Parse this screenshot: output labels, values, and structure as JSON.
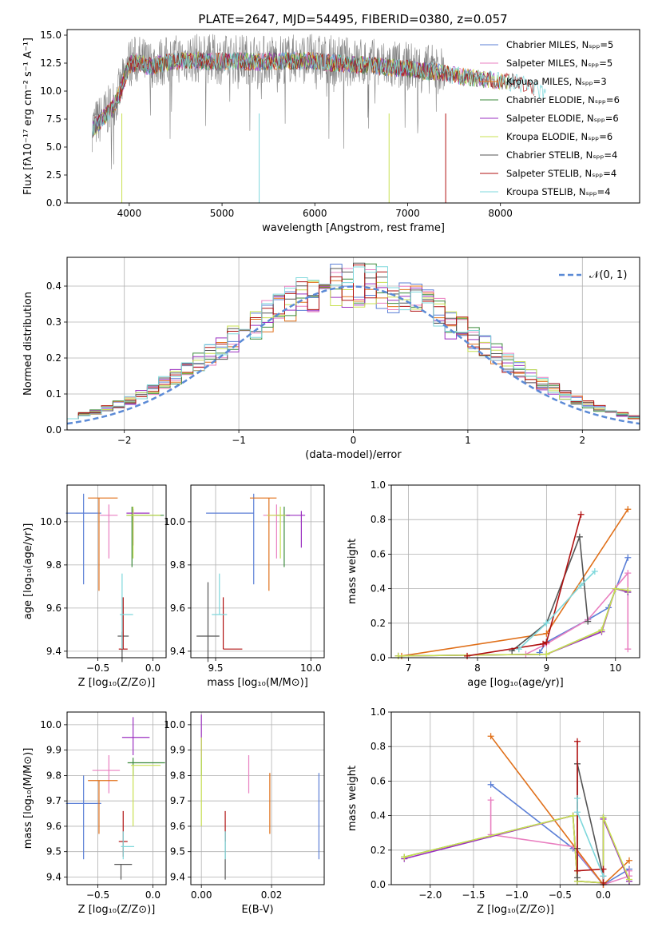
{
  "title": "PLATE=2647, MJD=54495, FIBERID=0380, z=0.057",
  "colors": {
    "chabrier_miles": "#5b7fd6",
    "salpeter_miles": "#e97fc0",
    "kroupa_miles": "#e0701a",
    "chabrier_elodie": "#3a8a3a",
    "salpeter_elodie": "#9b30c0",
    "kroupa_elodie": "#c8e050",
    "chabrier_stelib": "#555555",
    "salpeter_stelib": "#b01010",
    "kroupa_stelib": "#7fd8dc",
    "data": "#808080",
    "grid": "#b0b0b0"
  },
  "chart_data": [
    {
      "id": "spectrum",
      "type": "line",
      "xlabel": "wavelength [Angstrom, rest frame]",
      "ylabel": "Flux [fλ10⁻¹⁷ erg cm⁻² s⁻¹ A⁻¹]",
      "xlim": [
        3330,
        9500
      ],
      "ylim": [
        0,
        15.5
      ],
      "xticks": [
        "4000",
        "5000",
        "6000",
        "7000",
        "8000"
      ],
      "yticks": [
        "0.0",
        "2.5",
        "5.0",
        "7.5",
        "10.0",
        "12.5",
        "15.0"
      ],
      "legend_position": "right",
      "legend": [
        "Chabrier MILES, Nₛₚₚ=5",
        "Salpeter MILES, Nₛₚₚ=5",
        "Kroupa MILES, Nₛₚₚ=3",
        "Chabrier ELODIE, Nₛₚₚ=6",
        "Salpeter ELODIE, Nₛₚₚ=6",
        "Kroupa ELODIE, Nₛₚₚ=6",
        "Chabrier STELIB, Nₛₚₚ=4",
        "Salpeter STELIB, Nₛₚₚ=4",
        "Kroupa STELIB, Nₛₚₚ=4"
      ],
      "continuum": {
        "x": [
          3600,
          3700,
          3800,
          3900,
          4000,
          4100,
          4200,
          4400,
          4600,
          4800,
          5000,
          5200,
          5400,
          5600,
          5800,
          6000,
          6200,
          6400,
          6600,
          6800,
          7000,
          7200,
          7400
        ],
        "y": [
          6.8,
          7.6,
          8.5,
          10.0,
          12.6,
          12.8,
          12.4,
          12.7,
          13.0,
          12.9,
          12.8,
          12.9,
          12.8,
          12.9,
          12.9,
          12.9,
          12.7,
          12.6,
          12.5,
          12.3,
          12.2,
          12.0,
          11.8
        ]
      },
      "model_continuum": {
        "x": [
          7400,
          7600,
          7800,
          8000,
          8200,
          8400,
          8600
        ],
        "y": [
          11.7,
          11.5,
          11.3,
          11.1,
          10.9,
          10.4,
          9.2
        ]
      }
    },
    {
      "id": "residuals",
      "type": "histogram",
      "xlabel": "(data-model)/error",
      "ylabel": "Normed distribution",
      "xlim": [
        -2.5,
        2.5
      ],
      "ylim": [
        0,
        0.48
      ],
      "xticks": [
        "−2",
        "−1",
        "0",
        "1",
        "2"
      ],
      "yticks": [
        "0.0",
        "0.1",
        "0.2",
        "0.3",
        "0.4"
      ],
      "legend": "𝒩(0, 1)",
      "legend_position": "top-right",
      "bins": [
        -2.5,
        2.5,
        50
      ]
    },
    {
      "id": "age_vs_Z",
      "type": "errorbar",
      "xlabel": "Z [log₁₀(Z/Z⊙)]",
      "ylabel": "age  [log₁₀(age/yr)]",
      "xlim": [
        -0.78,
        0.12
      ],
      "ylim": [
        9.37,
        10.17
      ],
      "xticks": [
        "−0.5",
        "0.0"
      ],
      "yticks": [
        "9.4",
        "9.6",
        "9.8",
        "10.0"
      ],
      "points": [
        {
          "model": "chabrier_miles",
          "x": -0.63,
          "y": 10.04,
          "xerr": [
            0.16,
            0.16
          ],
          "yerr": [
            0.33,
            0.09
          ]
        },
        {
          "model": "salpeter_miles",
          "x": -0.4,
          "y": 10.03,
          "xerr": [
            0.08,
            0.08
          ],
          "yerr": [
            0.2,
            0.05
          ]
        },
        {
          "model": "kroupa_miles",
          "x": -0.49,
          "y": 10.11,
          "xerr": [
            0.1,
            0.17
          ],
          "yerr": [
            0.43,
            0.0
          ]
        },
        {
          "model": "chabrier_elodie",
          "x": -0.19,
          "y": 10.03,
          "xerr": [
            0.05,
            0.29
          ],
          "yerr": [
            0.24,
            0.04
          ]
        },
        {
          "model": "salpeter_elodie",
          "x": -0.18,
          "y": 10.04,
          "xerr": [
            0.06,
            0.15
          ],
          "yerr": [
            0.15,
            0.02
          ]
        },
        {
          "model": "kroupa_elodie",
          "x": -0.18,
          "y": 10.03,
          "xerr": [
            0.06,
            0.25
          ],
          "yerr": [
            0.2,
            0.04
          ]
        },
        {
          "model": "chabrier_stelib",
          "x": -0.28,
          "y": 9.47,
          "xerr": [
            0.04,
            0.06
          ],
          "yerr": [
            0.12,
            0.02
          ]
        },
        {
          "model": "salpeter_stelib",
          "x": -0.27,
          "y": 9.41,
          "xerr": [
            0.04,
            0.04
          ],
          "yerr": [
            0.0,
            0.24
          ]
        },
        {
          "model": "kroupa_stelib",
          "x": -0.28,
          "y": 9.57,
          "xerr": [
            0.02,
            0.1
          ],
          "yerr": [
            0.16,
            0.19
          ]
        }
      ]
    },
    {
      "id": "age_vs_mass",
      "type": "errorbar",
      "xlabel": "mass [log₁₀(M/M⊙)]",
      "ylabel": "",
      "xlim": [
        9.37,
        10.07
      ],
      "ylim": [
        9.37,
        10.17
      ],
      "xticks": [
        "9.5",
        "10.0"
      ],
      "yticks": [
        "9.4",
        "9.6",
        "9.8",
        "10.0"
      ],
      "points": [
        {
          "model": "chabrier_miles",
          "x": 9.7,
          "y": 10.04,
          "xerr": [
            0.25,
            0.0
          ],
          "yerr": [
            0.33,
            0.09
          ]
        },
        {
          "model": "salpeter_miles",
          "x": 9.82,
          "y": 10.03,
          "xerr": [
            0.07,
            0.07
          ],
          "yerr": [
            0.2,
            0.05
          ]
        },
        {
          "model": "kroupa_miles",
          "x": 9.78,
          "y": 10.11,
          "xerr": [
            0.1,
            0.04
          ],
          "yerr": [
            0.43,
            0.0
          ]
        },
        {
          "model": "chabrier_elodie",
          "x": 9.86,
          "y": 10.03,
          "xerr": [
            0.04,
            0.03
          ],
          "yerr": [
            0.24,
            0.04
          ]
        },
        {
          "model": "salpeter_elodie",
          "x": 9.95,
          "y": 10.03,
          "xerr": [
            0.09,
            0.02
          ],
          "yerr": [
            0.15,
            0.02
          ]
        },
        {
          "model": "kroupa_elodie",
          "x": 9.84,
          "y": 10.03,
          "xerr": [
            0.07,
            0.03
          ],
          "yerr": [
            0.2,
            0.04
          ]
        },
        {
          "model": "chabrier_stelib",
          "x": 9.46,
          "y": 9.47,
          "xerr": [
            0.06,
            0.06
          ],
          "yerr": [
            0.12,
            0.25
          ]
        },
        {
          "model": "salpeter_stelib",
          "x": 9.54,
          "y": 9.41,
          "xerr": [
            0.0,
            0.1
          ],
          "yerr": [
            0.0,
            0.24
          ]
        },
        {
          "model": "kroupa_stelib",
          "x": 9.52,
          "y": 9.57,
          "xerr": [
            0.04,
            0.04
          ],
          "yerr": [
            0.0,
            0.19
          ]
        }
      ]
    },
    {
      "id": "weight_vs_age",
      "type": "line",
      "xlabel": "age  [log₁₀(age/yr)]",
      "ylabel": "mass weight",
      "xlim": [
        6.75,
        10.35
      ],
      "ylim": [
        0,
        1
      ],
      "xticks": [
        "7",
        "8",
        "9",
        "10"
      ],
      "yticks": [
        "0.0",
        "0.2",
        "0.4",
        "0.6",
        "0.8",
        "1.0"
      ],
      "series": [
        {
          "model": "chabrier_miles",
          "x": [
            8.9,
            9.0,
            9.6,
            9.9,
            10.18
          ],
          "y": [
            0.03,
            0.09,
            0.22,
            0.29,
            0.58
          ]
        },
        {
          "model": "salpeter_miles",
          "x": [
            8.7,
            9.0,
            9.6,
            10.18,
            10.18
          ],
          "y": [
            0.02,
            0.08,
            0.22,
            0.49,
            0.05
          ]
        },
        {
          "model": "kroupa_miles",
          "x": [
            6.9,
            9.0,
            10.18
          ],
          "y": [
            0.01,
            0.14,
            0.86
          ]
        },
        {
          "model": "chabrier_elodie",
          "x": [
            6.85,
            9.0,
            9.8,
            10.0,
            10.18
          ],
          "y": [
            0.01,
            0.02,
            0.16,
            0.4,
            0.38
          ]
        },
        {
          "model": "salpeter_elodie",
          "x": [
            6.85,
            9.0,
            9.8,
            10.0,
            10.18
          ],
          "y": [
            0.01,
            0.02,
            0.15,
            0.4,
            0.38
          ]
        },
        {
          "model": "kroupa_elodie",
          "x": [
            6.85,
            9.0,
            9.8,
            10.0,
            10.18
          ],
          "y": [
            0.01,
            0.02,
            0.16,
            0.4,
            0.39
          ]
        },
        {
          "model": "chabrier_stelib",
          "x": [
            8.5,
            9.0,
            9.48,
            9.6
          ],
          "y": [
            0.04,
            0.2,
            0.7,
            0.21
          ]
        },
        {
          "model": "salpeter_stelib",
          "x": [
            7.85,
            8.95,
            9.0,
            9.5
          ],
          "y": [
            0.01,
            0.08,
            0.09,
            0.83
          ]
        },
        {
          "model": "kroupa_stelib",
          "x": [
            8.6,
            9.0,
            9.5,
            9.7
          ],
          "y": [
            0.05,
            0.2,
            0.42,
            0.5
          ]
        }
      ]
    },
    {
      "id": "mass_vs_Z",
      "type": "errorbar",
      "xlabel": "Z [log₁₀(Z/Z⊙)]",
      "ylabel": "mass [log₁₀(M/M⊙)]",
      "xlim": [
        -0.78,
        0.12
      ],
      "ylim": [
        9.37,
        10.05
      ],
      "xticks": [
        "−0.5",
        "0.0"
      ],
      "yticks": [
        "9.4",
        "9.5",
        "9.6",
        "9.7",
        "9.8",
        "9.9",
        "10.0"
      ],
      "points": [
        {
          "model": "chabrier_miles",
          "x": -0.63,
          "y": 9.69,
          "xerr": [
            0.16,
            0.16
          ],
          "yerr": [
            0.22,
            0.11
          ]
        },
        {
          "model": "salpeter_miles",
          "x": -0.4,
          "y": 9.82,
          "xerr": [
            0.15,
            0.1
          ],
          "yerr": [
            0.09,
            0.06
          ]
        },
        {
          "model": "kroupa_miles",
          "x": -0.49,
          "y": 9.78,
          "xerr": [
            0.1,
            0.17
          ],
          "yerr": [
            0.21,
            0.0
          ]
        },
        {
          "model": "chabrier_elodie",
          "x": -0.18,
          "y": 9.85,
          "xerr": [
            0.05,
            0.29
          ],
          "yerr": [
            0.05,
            0.02
          ]
        },
        {
          "model": "salpeter_elodie",
          "x": -0.18,
          "y": 9.95,
          "xerr": [
            0.1,
            0.15
          ],
          "yerr": [
            0.07,
            0.08
          ]
        },
        {
          "model": "kroupa_elodie",
          "x": -0.18,
          "y": 9.84,
          "xerr": [
            0.02,
            0.25
          ],
          "yerr": [
            0.24,
            0.0
          ]
        },
        {
          "model": "chabrier_stelib",
          "x": -0.29,
          "y": 9.45,
          "xerr": [
            0.06,
            0.1
          ],
          "yerr": [
            0.06,
            0.0
          ]
        },
        {
          "model": "salpeter_stelib",
          "x": -0.27,
          "y": 9.54,
          "xerr": [
            0.04,
            0.04
          ],
          "yerr": [
            0.06,
            0.12
          ]
        },
        {
          "model": "kroupa_stelib",
          "x": -0.27,
          "y": 9.52,
          "xerr": [
            0.02,
            0.1
          ],
          "yerr": [
            0.05,
            0.06
          ]
        }
      ]
    },
    {
      "id": "mass_vs_ebv",
      "type": "errorbar",
      "xlabel": "E(B-V)",
      "ylabel": "",
      "xlim": [
        -0.003,
        0.035
      ],
      "ylim": [
        9.37,
        10.05
      ],
      "xticks": [
        "0.00",
        "0.02"
      ],
      "yticks": [
        "9.4",
        "9.5",
        "9.6",
        "9.7",
        "9.8",
        "9.9",
        "10.0"
      ],
      "points": [
        {
          "model": "chabrier_miles",
          "x": 0.0335,
          "y": 9.69,
          "xerr": [
            0,
            0
          ],
          "yerr": [
            0.22,
            0.12
          ]
        },
        {
          "model": "salpeter_miles",
          "x": 0.0135,
          "y": 9.82,
          "xerr": [
            0,
            0
          ],
          "yerr": [
            0.09,
            0.06
          ]
        },
        {
          "model": "kroupa_miles",
          "x": 0.0195,
          "y": 9.69,
          "xerr": [
            0,
            0
          ],
          "yerr": [
            0.12,
            0.12
          ]
        },
        {
          "model": "chabrier_elodie",
          "x": 0.0,
          "y": 9.85,
          "xerr": [
            0,
            0
          ],
          "yerr": [
            0.05,
            0.02
          ]
        },
        {
          "model": "salpeter_elodie",
          "x": 0.0,
          "y": 9.95,
          "xerr": [
            0,
            0
          ],
          "yerr": [
            0.08,
            0.09
          ]
        },
        {
          "model": "kroupa_elodie",
          "x": 0.0,
          "y": 9.84,
          "xerr": [
            0,
            0
          ],
          "yerr": [
            0.24,
            0.11
          ]
        },
        {
          "model": "chabrier_stelib",
          "x": 0.0068,
          "y": 9.45,
          "xerr": [
            0,
            0
          ],
          "yerr": [
            0.06,
            0.13
          ]
        },
        {
          "model": "salpeter_stelib",
          "x": 0.0068,
          "y": 9.6,
          "xerr": [
            0,
            0
          ],
          "yerr": [
            0.06,
            0.06
          ]
        },
        {
          "model": "kroupa_stelib",
          "x": 0.0068,
          "y": 9.52,
          "xerr": [
            0,
            0
          ],
          "yerr": [
            0.05,
            0.06
          ]
        }
      ]
    },
    {
      "id": "weight_vs_Z",
      "type": "line",
      "xlabel": "Z [log₁₀(Z/Z⊙)]",
      "ylabel": "mass weight",
      "xlim": [
        -2.45,
        0.42
      ],
      "ylim": [
        0,
        1
      ],
      "xticks": [
        "−2.0",
        "−1.5",
        "−1.0",
        "−0.5",
        "0.0"
      ],
      "yticks": [
        "0.0",
        "0.2",
        "0.4",
        "0.6",
        "0.8",
        "1.0"
      ],
      "series": [
        {
          "model": "chabrier_miles",
          "x": [
            -1.3,
            -0.35,
            0.0,
            0.3
          ],
          "y": [
            0.58,
            0.21,
            0.0,
            0.09
          ]
        },
        {
          "model": "salpeter_miles",
          "x": [
            -1.3,
            -1.3,
            -0.35,
            0.0,
            0.3,
            0.3
          ],
          "y": [
            0.49,
            0.29,
            0.22,
            0.0,
            0.05,
            0.08
          ]
        },
        {
          "model": "kroupa_miles",
          "x": [
            -1.3,
            0.0,
            0.3
          ],
          "y": [
            0.86,
            0.0,
            0.14
          ]
        },
        {
          "model": "chabrier_elodie",
          "x": [
            -2.3,
            -0.35,
            -0.3,
            0.0,
            0.0,
            0.3
          ],
          "y": [
            0.16,
            0.4,
            0.02,
            0.01,
            0.39,
            0.02
          ]
        },
        {
          "model": "salpeter_elodie",
          "x": [
            -2.3,
            -0.35,
            -0.3,
            0.0,
            0.0,
            0.3
          ],
          "y": [
            0.15,
            0.4,
            0.02,
            0.01,
            0.38,
            0.02
          ]
        },
        {
          "model": "kroupa_elodie",
          "x": [
            -2.3,
            -0.35,
            -0.3,
            0.0,
            0.0,
            0.3
          ],
          "y": [
            0.16,
            0.4,
            0.02,
            0.01,
            0.39,
            0.03
          ]
        },
        {
          "model": "chabrier_stelib",
          "x": [
            -0.3,
            -0.3,
            -0.3,
            0.0
          ],
          "y": [
            0.04,
            0.21,
            0.7,
            0.05
          ]
        },
        {
          "model": "salpeter_stelib",
          "x": [
            -0.3,
            -0.3,
            0.0,
            0.0
          ],
          "y": [
            0.83,
            0.08,
            0.09,
            0.01
          ]
        },
        {
          "model": "kroupa_stelib",
          "x": [
            -0.3,
            -0.3,
            0.0
          ],
          "y": [
            0.5,
            0.42,
            0.05
          ]
        }
      ]
    }
  ]
}
